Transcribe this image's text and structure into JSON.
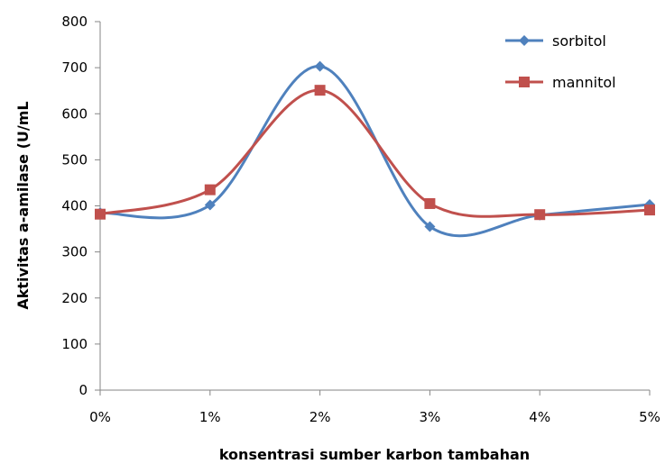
{
  "chart_data": {
    "type": "line",
    "title": "",
    "xlabel": "konsentrasi sumber karbon  tambahan",
    "ylabel": "Aktivitas a-amilase  (U/mL",
    "categories": [
      "0%",
      "1%",
      "2%",
      "3%",
      "4%",
      "5%"
    ],
    "ylim": [
      0,
      800
    ],
    "yticks": [
      0,
      100,
      200,
      300,
      400,
      500,
      600,
      700,
      800
    ],
    "grid": false,
    "smooth": true,
    "legend_position": "top-right",
    "series": [
      {
        "name": "sorbitol",
        "marker": "diamond",
        "color": "#4f81bd",
        "values": [
          385,
          402,
          703,
          355,
          380,
          403
        ]
      },
      {
        "name": "mannitol",
        "marker": "square",
        "color": "#c0504d",
        "values": [
          382,
          435,
          651,
          405,
          381,
          391
        ]
      }
    ]
  }
}
